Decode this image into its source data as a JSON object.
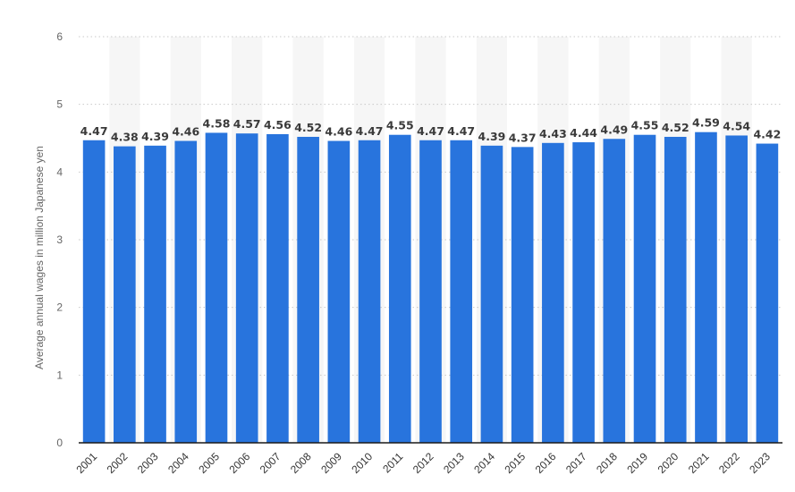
{
  "chart_data": {
    "type": "bar",
    "ylabel": "Average annual wages in million Japanese yen",
    "xlabel": "",
    "ylim": [
      0,
      6
    ],
    "yticks": [
      0,
      1,
      2,
      3,
      4,
      5,
      6
    ],
    "grid": "horizontal dotted",
    "bar_color": "#2874dd",
    "categories": [
      "2001",
      "2002",
      "2003",
      "2004",
      "2005",
      "2006",
      "2007",
      "2008",
      "2009",
      "2010",
      "2011",
      "2012",
      "2013",
      "2014",
      "2015",
      "2016",
      "2017",
      "2018",
      "2019",
      "2020",
      "2021",
      "2022",
      "2023"
    ],
    "values": [
      4.47,
      4.38,
      4.39,
      4.46,
      4.58,
      4.57,
      4.56,
      4.52,
      4.46,
      4.47,
      4.55,
      4.47,
      4.47,
      4.39,
      4.37,
      4.43,
      4.44,
      4.49,
      4.55,
      4.52,
      4.59,
      4.54,
      4.42
    ],
    "data_labels": [
      "4.47",
      "4.38",
      "4.39",
      "4.46",
      "4.58",
      "4.57",
      "4.56",
      "4.52",
      "4.46",
      "4.47",
      "4.55",
      "4.47",
      "4.47",
      "4.39",
      "4.37",
      "4.43",
      "4.44",
      "4.49",
      "4.55",
      "4.52",
      "4.59",
      "4.54",
      "4.42"
    ]
  }
}
